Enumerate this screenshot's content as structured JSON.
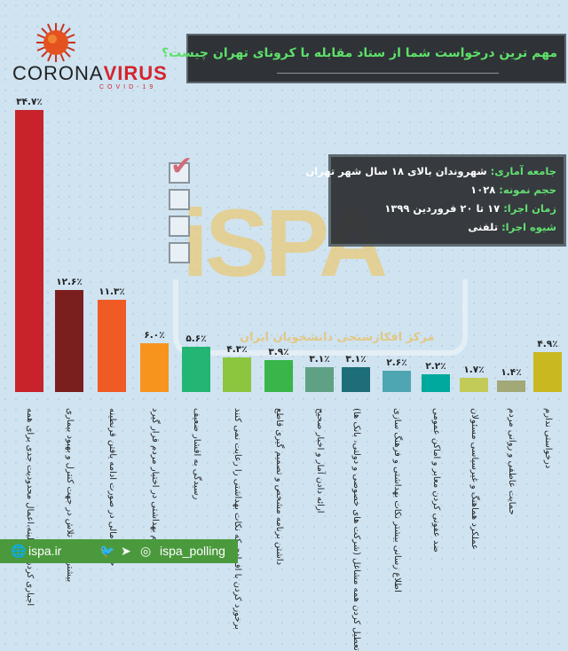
{
  "logo": {
    "word1": "CORONA",
    "word2": "VIRUS",
    "sub": "COVID-19"
  },
  "header": {
    "title": "مهم ترین درخواست شما از ستاد مقابله با کرونای تهران چیست؟"
  },
  "info": {
    "lines": [
      {
        "key": "جامعه آماری:",
        "value": "شهروندان بالای ۱۸ سال شهر تهران"
      },
      {
        "key": "حجم نمونه:",
        "value": "۱۰۲۸"
      },
      {
        "key": "زمان اجرا:",
        "value": "۱۷ تا ۲۰ فروردین ۱۳۹۹"
      },
      {
        "key": "شیوه اجرا:",
        "value": "تلفنی"
      }
    ]
  },
  "watermark": {
    "text": "iSPA",
    "caption": "مرکز افکارسنجی دانشجویان ایران"
  },
  "footer": {
    "website": "ispa.ir",
    "handle": "ispa_polling"
  },
  "chart_data": {
    "type": "bar",
    "title": "مهم ترین درخواست شما از ستاد مقابله با کرونای تهران چیست؟",
    "xlabel": "",
    "ylabel": "",
    "ylim": [
      0,
      35
    ],
    "grid": false,
    "categories": [
      "اجباری کردن قرنطینه،اعمال محدودیت جدی برای همه",
      "بیشتر شدن تلاش در جهت کنترل و بهبود بیماری",
      "حمایت مالی در صورت ادامه یافتن قرنطینه",
      "اقلام بهداشتی در اختیار مردم قرار گیرد",
      "رسیدگی به اقشار ضعیف",
      "برخورد کردن با افرادی که نکات بهداشتی را رعایت نمی کنند",
      "داشتن برنامه مشخص و تصمیم گیری قاطع",
      "ارائه دادن آمار و اخبار صحیح",
      "تعطیل کردن همه مشاغل (شرکت های خصوصی و دولتی، بانک ها)",
      "اطلاع رسانی بیشتر نکات بهداشتی و فرهنگ سازی",
      "ضد عفونی کردن معابر و اماکن عمومی",
      "عملکرد هماهنگ و غیرسیاسی مسئولان",
      "حمایت عاطفی و روانی مردم",
      "درخواستی ندارم"
    ],
    "values": [
      34.7,
      12.6,
      11.3,
      6.0,
      5.6,
      4.3,
      3.9,
      3.1,
      3.1,
      2.6,
      2.2,
      1.7,
      1.4,
      4.9
    ],
    "value_labels": [
      "۳۴.۷٪",
      "۱۲.۶٪",
      "۱۱.۳٪",
      "۶.۰٪",
      "۵.۶٪",
      "۴.۳٪",
      "۳.۹٪",
      "۳.۱٪",
      "۳.۱٪",
      "۲.۶٪",
      "۲.۲٪",
      "۱.۷٪",
      "۱.۴٪",
      "۴.۹٪"
    ],
    "colors": [
      "#c8232c",
      "#7b1e1e",
      "#f05a24",
      "#f7941d",
      "#22b573",
      "#8cc63f",
      "#39b54a",
      "#5fa184",
      "#1d6e79",
      "#4fa6b3",
      "#00a99d",
      "#c2cb57",
      "#a3a878",
      "#c9b820"
    ]
  }
}
